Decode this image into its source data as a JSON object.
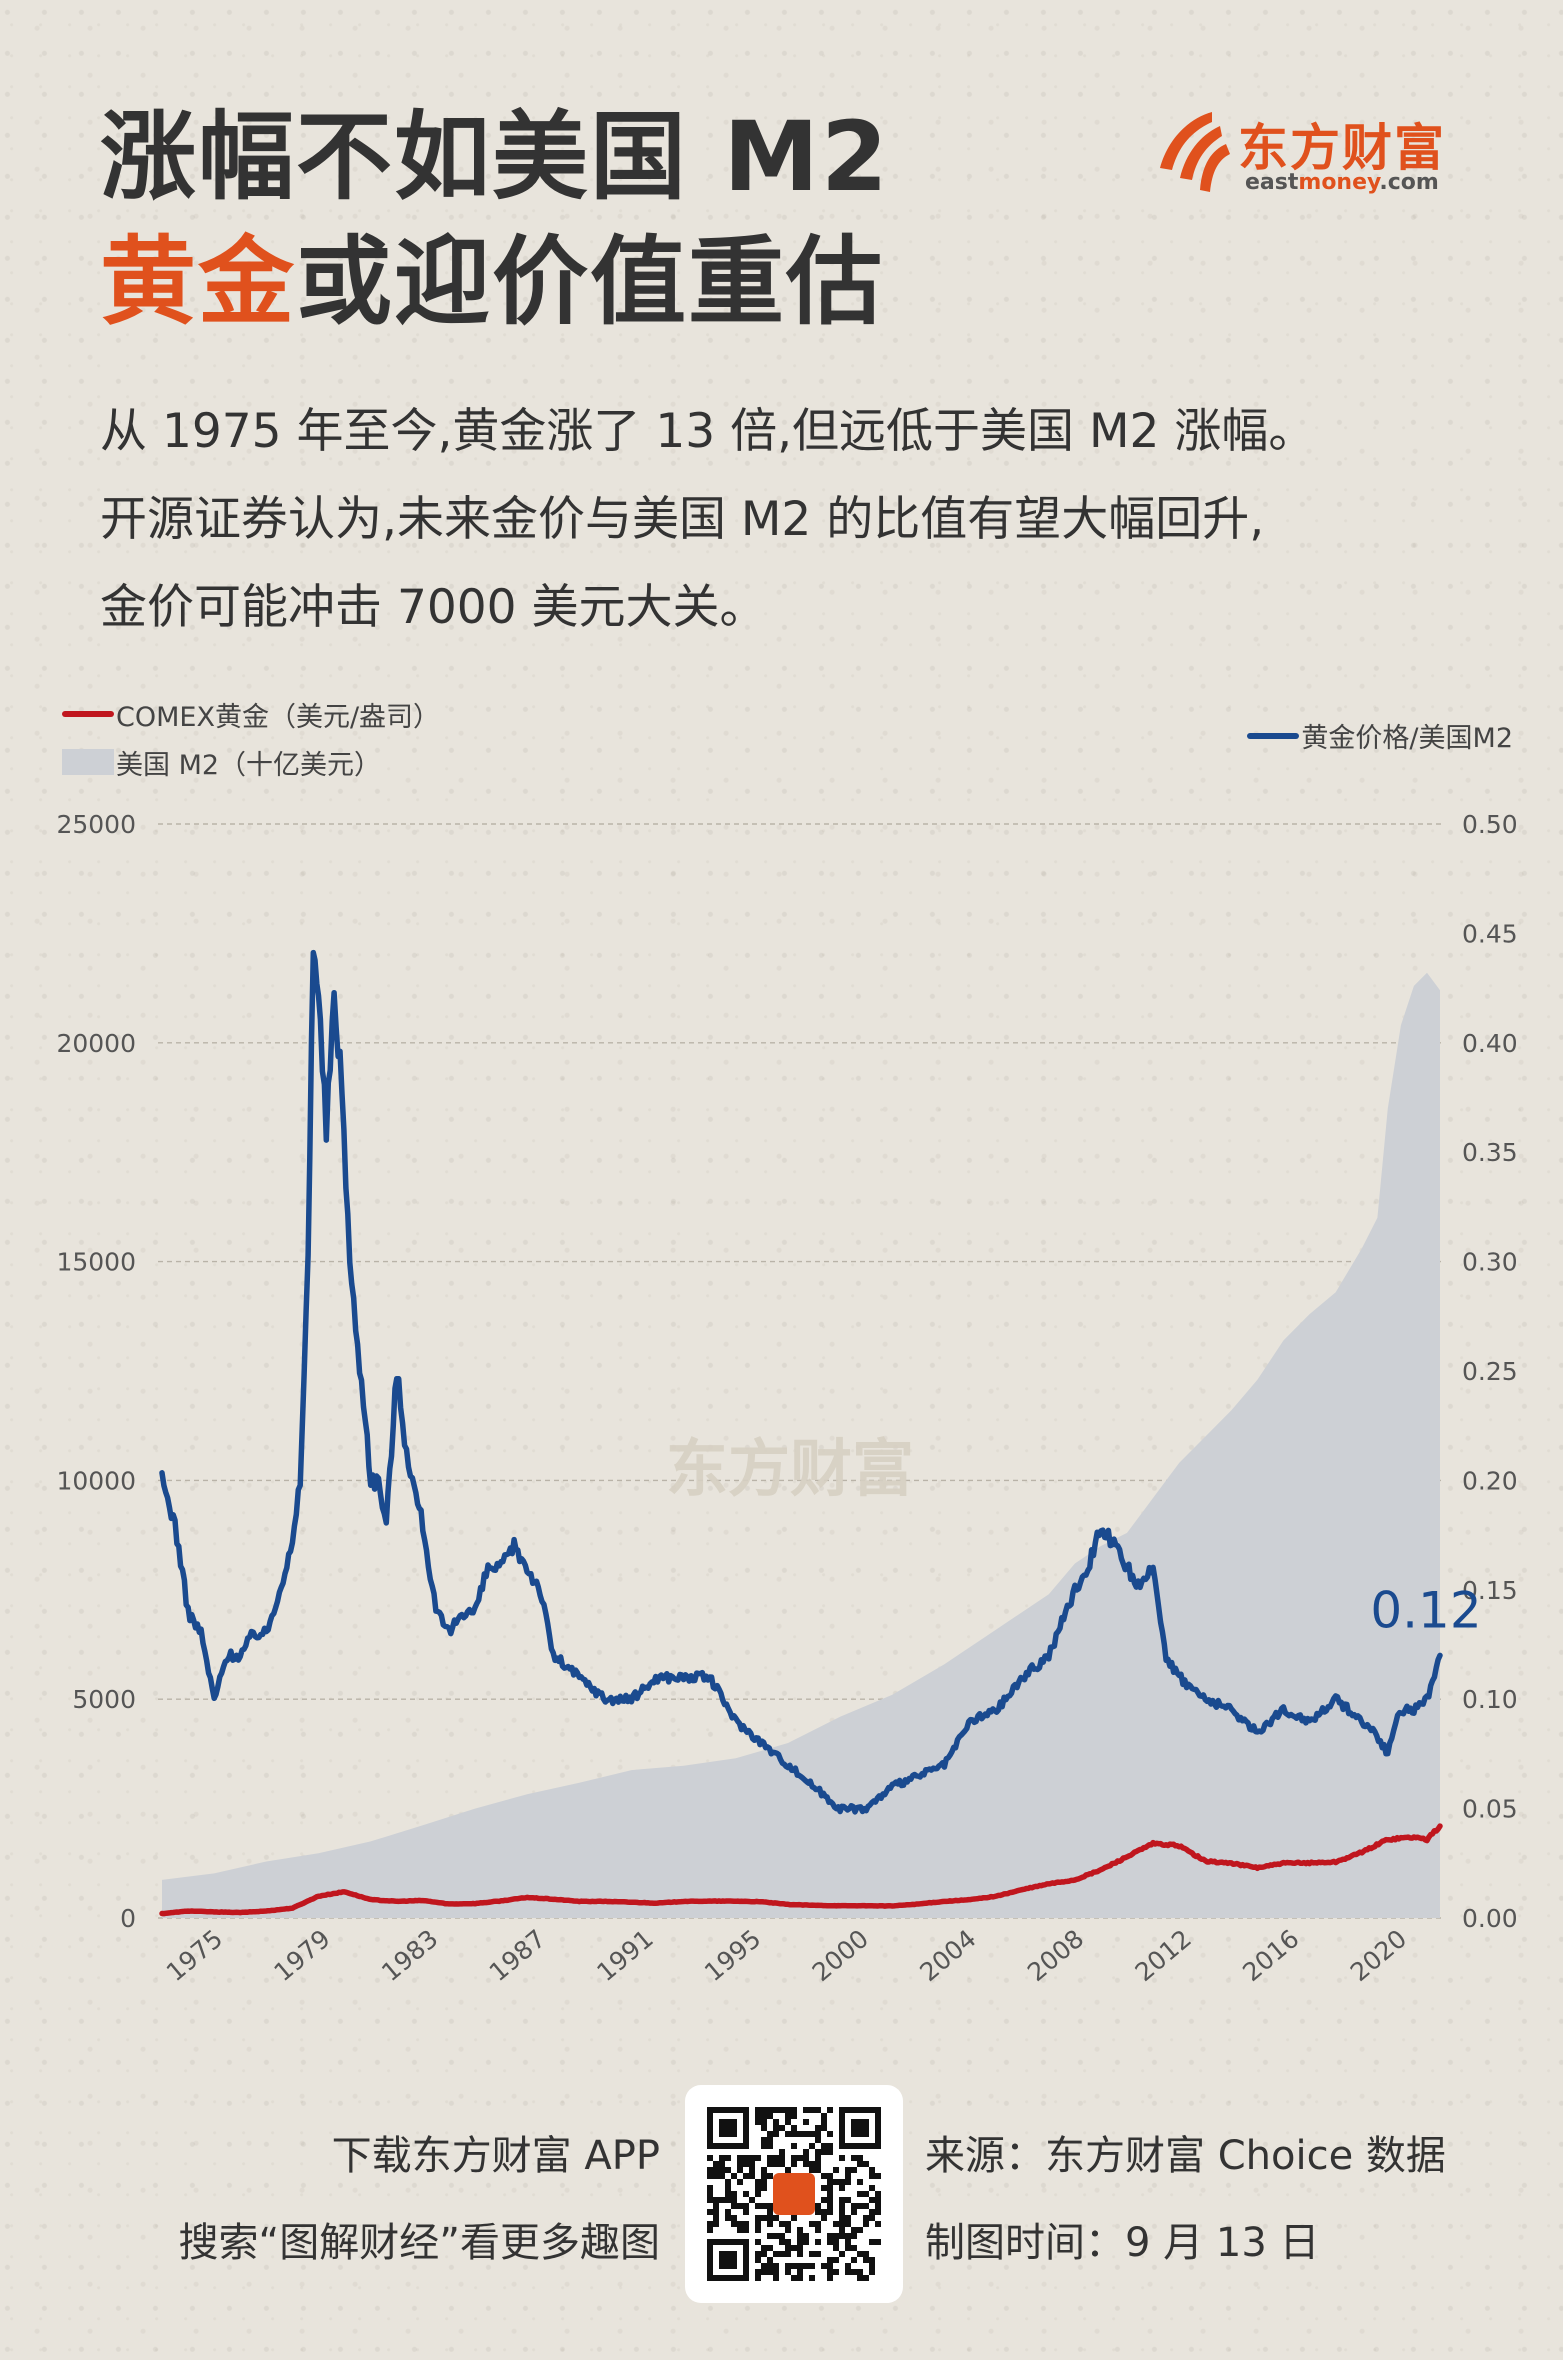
{
  "header": {
    "title_line1": "涨幅不如美国 M2",
    "title_line2_accent": "黄金",
    "title_line2_rest": "或迎价值重估"
  },
  "brand": {
    "name": "东方财富",
    "url_prefix": "east",
    "url_highlight": "money",
    "url_suffix": ".com",
    "color": "#e0511d"
  },
  "intro": {
    "line1": "从 1975 年至今,黄金涨了 13 倍,但远低于美国 M2 涨幅。",
    "line2": "开源证券认为,未来金价与美国 M2 的比值有望大幅回升,",
    "line3": "金价可能冲击 7000 美元大关。"
  },
  "legend": {
    "gold": "COMEX黄金（美元/盎司）",
    "m2": "美国 M2（十亿美元）",
    "ratio": "黄金价格/美国M2"
  },
  "chart_data": {
    "type": "line",
    "title": "",
    "watermark": "东方财富",
    "left_axis": {
      "ylim": [
        0,
        25000
      ],
      "ticks": [
        "0",
        "5000",
        "10000",
        "15000",
        "20000",
        "25000"
      ]
    },
    "right_axis": {
      "ylim": [
        0,
        0.5
      ],
      "ticks": [
        "0.00",
        "0.05",
        "0.10",
        "0.15",
        "0.20",
        "0.25",
        "0.30",
        "0.35",
        "0.40",
        "0.45",
        "0.50"
      ]
    },
    "x_range": [
      1973.0,
      2022.0
    ],
    "x_ticks": [
      "1975",
      "1979",
      "1983",
      "1987",
      "1991",
      "1995",
      "2000",
      "2004",
      "2008",
      "2012",
      "2016",
      "2020"
    ],
    "end_label": "0.12",
    "series": [
      {
        "name": "美国 M2（十亿美元）",
        "axis": "left",
        "kind": "area",
        "color": "#cdd0d5",
        "points": [
          [
            1973.0,
            870
          ],
          [
            1975.0,
            1020
          ],
          [
            1977.0,
            1290
          ],
          [
            1979.0,
            1480
          ],
          [
            1981.0,
            1750
          ],
          [
            1983.0,
            2120
          ],
          [
            1985.0,
            2500
          ],
          [
            1987.0,
            2830
          ],
          [
            1989.0,
            3090
          ],
          [
            1991.0,
            3380
          ],
          [
            1993.0,
            3480
          ],
          [
            1995.0,
            3650
          ],
          [
            1997.0,
            4000
          ],
          [
            1999.0,
            4600
          ],
          [
            2001.0,
            5100
          ],
          [
            2002.0,
            5450
          ],
          [
            2003.0,
            5800
          ],
          [
            2004.0,
            6200
          ],
          [
            2005.0,
            6600
          ],
          [
            2006.0,
            7000
          ],
          [
            2007.0,
            7400
          ],
          [
            2008.0,
            8100
          ],
          [
            2009.0,
            8500
          ],
          [
            2010.0,
            8800
          ],
          [
            2011.0,
            9600
          ],
          [
            2012.0,
            10400
          ],
          [
            2013.0,
            11000
          ],
          [
            2014.0,
            11600
          ],
          [
            2015.0,
            12300
          ],
          [
            2016.0,
            13200
          ],
          [
            2017.0,
            13800
          ],
          [
            2018.0,
            14300
          ],
          [
            2019.0,
            15300
          ],
          [
            2019.6,
            16000
          ],
          [
            2020.0,
            18500
          ],
          [
            2020.5,
            20400
          ],
          [
            2021.0,
            21300
          ],
          [
            2021.5,
            21600
          ],
          [
            2022.0,
            21200
          ]
        ]
      },
      {
        "name": "COMEX黄金（美元/盎司）",
        "axis": "left",
        "kind": "line",
        "color": "#c0161e",
        "points": [
          [
            1973.0,
            100
          ],
          [
            1974.0,
            160
          ],
          [
            1975.0,
            140
          ],
          [
            1976.0,
            125
          ],
          [
            1977.0,
            160
          ],
          [
            1978.0,
            225
          ],
          [
            1979.0,
            500
          ],
          [
            1980.0,
            600
          ],
          [
            1981.0,
            420
          ],
          [
            1982.0,
            380
          ],
          [
            1983.0,
            400
          ],
          [
            1984.0,
            320
          ],
          [
            1985.0,
            330
          ],
          [
            1986.0,
            390
          ],
          [
            1987.0,
            470
          ],
          [
            1988.0,
            430
          ],
          [
            1989.0,
            380
          ],
          [
            1990.0,
            380
          ],
          [
            1991.0,
            360
          ],
          [
            1992.0,
            340
          ],
          [
            1993.0,
            380
          ],
          [
            1994.0,
            385
          ],
          [
            1995.0,
            385
          ],
          [
            1996.0,
            370
          ],
          [
            1997.0,
            310
          ],
          [
            1998.0,
            290
          ],
          [
            1999.0,
            280
          ],
          [
            2000.0,
            280
          ],
          [
            2001.0,
            275
          ],
          [
            2002.0,
            320
          ],
          [
            2003.0,
            380
          ],
          [
            2004.0,
            420
          ],
          [
            2005.0,
            500
          ],
          [
            2006.0,
            650
          ],
          [
            2007.0,
            780
          ],
          [
            2008.0,
            870
          ],
          [
            2009.0,
            1100
          ],
          [
            2010.0,
            1400
          ],
          [
            2011.0,
            1700
          ],
          [
            2012.0,
            1650
          ],
          [
            2013.0,
            1300
          ],
          [
            2014.0,
            1250
          ],
          [
            2015.0,
            1150
          ],
          [
            2016.0,
            1250
          ],
          [
            2017.0,
            1260
          ],
          [
            2018.0,
            1280
          ],
          [
            2019.0,
            1500
          ],
          [
            2020.0,
            1800
          ],
          [
            2021.0,
            1850
          ],
          [
            2021.5,
            1790
          ],
          [
            2022.0,
            2100
          ]
        ]
      },
      {
        "name": "黄金价格/美国M2",
        "axis": "right",
        "kind": "line",
        "color": "#1a4a8f",
        "points": [
          [
            1973.0,
            0.2
          ],
          [
            1973.5,
            0.18
          ],
          [
            1974.0,
            0.14
          ],
          [
            1974.5,
            0.13
          ],
          [
            1975.0,
            0.1
          ],
          [
            1975.5,
            0.12
          ],
          [
            1976.0,
            0.12
          ],
          [
            1976.5,
            0.13
          ],
          [
            1977.0,
            0.13
          ],
          [
            1977.5,
            0.15
          ],
          [
            1978.0,
            0.17
          ],
          [
            1978.3,
            0.2
          ],
          [
            1978.6,
            0.3
          ],
          [
            1978.8,
            0.45
          ],
          [
            1979.0,
            0.42
          ],
          [
            1979.3,
            0.36
          ],
          [
            1979.6,
            0.42
          ],
          [
            1979.9,
            0.38
          ],
          [
            1980.2,
            0.3
          ],
          [
            1980.5,
            0.26
          ],
          [
            1980.8,
            0.23
          ],
          [
            1981.0,
            0.2
          ],
          [
            1981.3,
            0.2
          ],
          [
            1981.6,
            0.18
          ],
          [
            1982.0,
            0.25
          ],
          [
            1982.3,
            0.22
          ],
          [
            1982.6,
            0.2
          ],
          [
            1983.0,
            0.18
          ],
          [
            1983.5,
            0.14
          ],
          [
            1984.0,
            0.13
          ],
          [
            1984.5,
            0.14
          ],
          [
            1985.0,
            0.14
          ],
          [
            1985.5,
            0.16
          ],
          [
            1986.0,
            0.16
          ],
          [
            1986.5,
            0.17
          ],
          [
            1987.0,
            0.16
          ],
          [
            1987.5,
            0.15
          ],
          [
            1988.0,
            0.12
          ],
          [
            1989.0,
            0.11
          ],
          [
            1990.0,
            0.1
          ],
          [
            1991.0,
            0.1
          ],
          [
            1992.0,
            0.11
          ],
          [
            1993.0,
            0.11
          ],
          [
            1994.0,
            0.11
          ],
          [
            1995.0,
            0.09
          ],
          [
            1996.0,
            0.08
          ],
          [
            1997.0,
            0.07
          ],
          [
            1998.0,
            0.06
          ],
          [
            1999.0,
            0.05
          ],
          [
            2000.0,
            0.05
          ],
          [
            2001.0,
            0.06
          ],
          [
            2002.0,
            0.065
          ],
          [
            2003.0,
            0.07
          ],
          [
            2004.0,
            0.09
          ],
          [
            2005.0,
            0.095
          ],
          [
            2006.0,
            0.11
          ],
          [
            2007.0,
            0.12
          ],
          [
            2008.0,
            0.15
          ],
          [
            2008.5,
            0.16
          ],
          [
            2009.0,
            0.18
          ],
          [
            2009.5,
            0.17
          ],
          [
            2010.0,
            0.16
          ],
          [
            2010.5,
            0.15
          ],
          [
            2011.0,
            0.16
          ],
          [
            2011.5,
            0.12
          ],
          [
            2012.0,
            0.11
          ],
          [
            2013.0,
            0.1
          ],
          [
            2014.0,
            0.095
          ],
          [
            2015.0,
            0.085
          ],
          [
            2016.0,
            0.095
          ],
          [
            2017.0,
            0.09
          ],
          [
            2018.0,
            0.1
          ],
          [
            2019.0,
            0.09
          ],
          [
            2019.5,
            0.085
          ],
          [
            2020.0,
            0.075
          ],
          [
            2020.3,
            0.09
          ],
          [
            2020.6,
            0.095
          ],
          [
            2021.0,
            0.095
          ],
          [
            2021.5,
            0.1
          ],
          [
            2022.0,
            0.12
          ]
        ]
      }
    ]
  },
  "footer": {
    "download_line": "下载东方财富 APP",
    "search_line": "搜索“图解财经”看更多趣图",
    "source_line": "来源：东方财富 Choice 数据",
    "date_line": "制图时间：9 月 13 日"
  }
}
